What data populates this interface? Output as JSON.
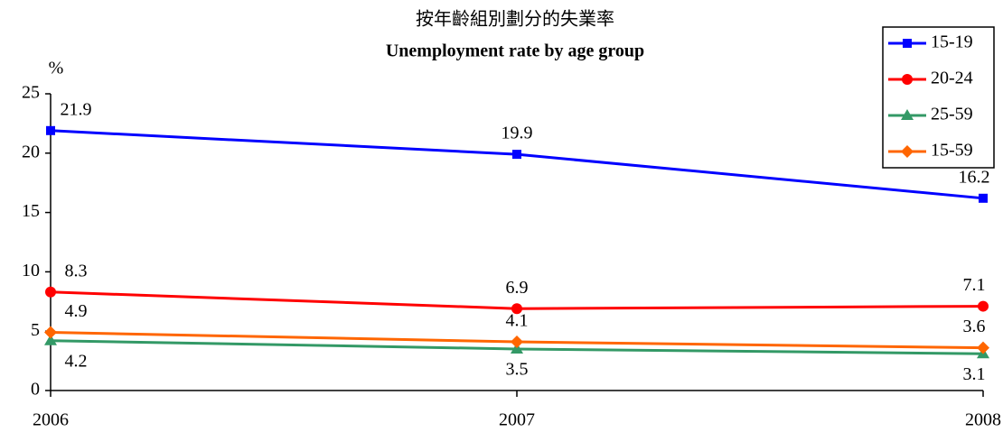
{
  "chart_data": {
    "type": "line",
    "title": "按年齡組別劃分的失業率",
    "subtitle": "Unemployment rate by age group",
    "y_label": "%",
    "categories": [
      "2006",
      "2007",
      "2008"
    ],
    "series": [
      {
        "name": "15-19",
        "color": "#0000ff",
        "marker": "square",
        "values": [
          21.9,
          19.9,
          16.2
        ]
      },
      {
        "name": "20-24",
        "color": "#ff0000",
        "marker": "circle",
        "values": [
          8.3,
          6.9,
          7.1
        ]
      },
      {
        "name": "25-59",
        "color": "#339966",
        "marker": "triangle",
        "values": [
          4.2,
          3.5,
          3.1
        ]
      },
      {
        "name": "15-59",
        "color": "#ff6600",
        "marker": "diamond",
        "values": [
          4.9,
          4.1,
          3.6
        ]
      }
    ],
    "ylim": [
      0,
      25
    ],
    "yticks": [
      0,
      5,
      10,
      15,
      20,
      25
    ],
    "legend": "top-right"
  }
}
